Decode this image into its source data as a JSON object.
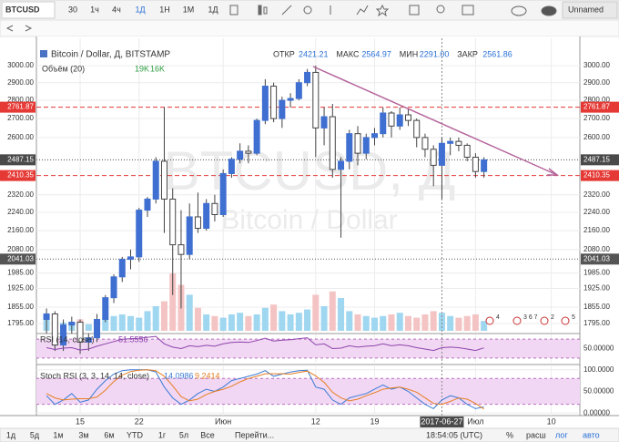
{
  "toolbar": {
    "symbol": "BTCUSD",
    "intervals": [
      "30",
      "1ч",
      "4ч",
      "1Д",
      "1Н",
      "1М"
    ],
    "style": "1Д",
    "layout": "Unnamed"
  },
  "bottom_bar": {
    "ranges": [
      "1д",
      "5д",
      "1м",
      "3м",
      "6м",
      "YTD",
      "1г",
      "5л",
      "Все"
    ],
    "goto": "Перейти...",
    "clock": "18:54:05 (UTC)",
    "options": [
      "%",
      "расш",
      "лог",
      "авто"
    ]
  },
  "chart_data": [
    {
      "type": "candlestick",
      "title": "Bitcoin / Dollar, Д, BITSTAMP",
      "watermark": [
        "BTCUSD, Д",
        "Bitcoin / Dollar"
      ],
      "ohlc_header": [
        {
          "name": "ОТКР",
          "value": "2421.21"
        },
        {
          "name": "МАКС",
          "value": "2564.97"
        },
        {
          "name": "МИН",
          "value": "2291.00"
        },
        {
          "name": "ЗАКР",
          "value": "2561.86"
        }
      ],
      "log_scale": true,
      "grid": true,
      "up_color": "#3f6fd1",
      "down_color": "#ffffff",
      "xlim": [
        -5.2,
        59.4
      ],
      "xticks": [
        {
          "value": 0,
          "label": "15"
        },
        {
          "value": 7,
          "label": "22"
        },
        {
          "value": 17,
          "label": "Июн"
        },
        {
          "value": 28,
          "label": "12"
        },
        {
          "value": 35,
          "label": "19"
        },
        {
          "value": 47,
          "label": "Июл"
        },
        {
          "value": 56,
          "label": "10"
        }
      ],
      "cursor_x": {
        "value": 43,
        "label": "2017-06-27"
      },
      "ylim": [
        1763,
        3168
      ],
      "yticks": [
        {
          "value": 3000,
          "label": "3000.00"
        },
        {
          "value": 2900,
          "label": "2900.00"
        },
        {
          "value": 2800,
          "label": "2800.00"
        },
        {
          "value": 2700,
          "label": "2700.00"
        },
        {
          "value": 2600,
          "label": "2600.00"
        },
        {
          "value": 2320,
          "label": "2320.00"
        },
        {
          "value": 2240,
          "label": "2240.00"
        },
        {
          "value": 2160,
          "label": "2160.00"
        },
        {
          "value": 2080,
          "label": "2080.00"
        },
        {
          "value": 1985,
          "label": "1985.00"
        },
        {
          "value": 1925,
          "label": "1925.00"
        },
        {
          "value": 1855,
          "label": "1855.00"
        },
        {
          "value": 1795,
          "label": "1795.00"
        }
      ],
      "levels": [
        {
          "value": 2761.87,
          "label": "2761.87",
          "color": "#e53935",
          "style": "dashed"
        },
        {
          "value": 2487.15,
          "label": "2487.15",
          "color": "#4a4a4a",
          "style": "dotted"
        },
        {
          "value": 2410.35,
          "label": "2410.35",
          "color": "#e53935",
          "style": "dashed"
        },
        {
          "value": 2041.03,
          "label": "2041.03",
          "color": "#555555",
          "style": "dotted"
        }
      ],
      "x": [
        -4,
        -3,
        -2,
        -1,
        0,
        1,
        2,
        3,
        4,
        5,
        6,
        7,
        8,
        9,
        10,
        11,
        12,
        13,
        14,
        15,
        16,
        17,
        18,
        19,
        20,
        21,
        22,
        23,
        24,
        25,
        26,
        27,
        28,
        29,
        30,
        31,
        32,
        33,
        34,
        35,
        36,
        37,
        38,
        39,
        40,
        41,
        42,
        43,
        44,
        45,
        46,
        47,
        48
      ],
      "ohlc": [
        [
          1810,
          1850,
          1760,
          1830
        ],
        [
          1830,
          1840,
          1700,
          1720
        ],
        [
          1720,
          1810,
          1700,
          1790
        ],
        [
          1790,
          1820,
          1760,
          1800
        ],
        [
          1800,
          1810,
          1690,
          1730
        ],
        [
          1730,
          1760,
          1700,
          1745
        ],
        [
          1745,
          1830,
          1730,
          1810
        ],
        [
          1810,
          1900,
          1800,
          1890
        ],
        [
          1890,
          1980,
          1870,
          1970
        ],
        [
          1970,
          2050,
          1950,
          2040
        ],
        [
          2040,
          2080,
          2000,
          2050
        ],
        [
          2050,
          2260,
          2030,
          2250
        ],
        [
          2250,
          2310,
          2220,
          2300
        ],
        [
          2300,
          2500,
          2280,
          2480
        ],
        [
          2480,
          2762,
          2150,
          2300
        ],
        [
          2300,
          2350,
          1900,
          2100
        ],
        [
          2100,
          2250,
          1850,
          2060
        ],
        [
          2060,
          2280,
          2040,
          2220
        ],
        [
          2220,
          2330,
          2150,
          2170
        ],
        [
          2170,
          2300,
          2160,
          2280
        ],
        [
          2280,
          2320,
          2200,
          2230
        ],
        [
          2230,
          2440,
          2220,
          2420
        ],
        [
          2420,
          2500,
          2400,
          2490
        ],
        [
          2490,
          2570,
          2470,
          2530
        ],
        [
          2530,
          2560,
          2470,
          2520
        ],
        [
          2520,
          2700,
          2510,
          2690
        ],
        [
          2690,
          2920,
          2670,
          2880
        ],
        [
          2880,
          2900,
          2680,
          2700
        ],
        [
          2700,
          2820,
          2650,
          2800
        ],
        [
          2800,
          2840,
          2760,
          2810
        ],
        [
          2810,
          2920,
          2800,
          2900
        ],
        [
          2900,
          2980,
          2880,
          2960
        ],
        [
          2960,
          3000,
          2500,
          2650
        ],
        [
          2650,
          2760,
          2560,
          2710
        ],
        [
          2710,
          2780,
          2400,
          2440
        ],
        [
          2440,
          2500,
          2130,
          2480
        ],
        [
          2480,
          2640,
          2440,
          2620
        ],
        [
          2620,
          2660,
          2460,
          2520
        ],
        [
          2520,
          2620,
          2490,
          2600
        ],
        [
          2600,
          2650,
          2560,
          2620
        ],
        [
          2620,
          2760,
          2600,
          2730
        ],
        [
          2730,
          2740,
          2600,
          2660
        ],
        [
          2660,
          2760,
          2640,
          2720
        ],
        [
          2720,
          2750,
          2660,
          2690
        ],
        [
          2690,
          2700,
          2550,
          2600
        ],
        [
          2600,
          2620,
          2500,
          2540
        ],
        [
          2540,
          2560,
          2360,
          2460
        ],
        [
          2460,
          2600,
          2300,
          2570
        ],
        [
          2570,
          2600,
          2510,
          2580
        ],
        [
          2580,
          2600,
          2530,
          2560
        ],
        [
          2560,
          2570,
          2480,
          2500
        ],
        [
          2500,
          2520,
          2400,
          2430
        ],
        [
          2430,
          2500,
          2400,
          2487.15
        ]
      ],
      "volume": {
        "name": "Объём (20)",
        "legend_values": [
          "19K",
          "16K"
        ],
        "up_color": "#9fd6f0",
        "down_color": "#f4c4c4",
        "values": [
          8,
          6,
          5,
          5,
          7,
          4,
          6,
          8,
          9,
          10,
          9,
          8,
          12,
          15,
          18,
          35,
          28,
          22,
          14,
          10,
          9,
          8,
          10,
          11,
          9,
          10,
          14,
          16,
          12,
          10,
          11,
          13,
          22,
          15,
          24,
          20,
          12,
          10,
          9,
          8,
          9,
          10,
          11,
          9,
          8,
          10,
          12,
          11,
          9,
          8,
          9,
          10,
          6
        ]
      },
      "event_flags": [
        "4",
        "3 6 7",
        "2",
        "5"
      ]
    },
    {
      "type": "line",
      "title": "RSI (14, close)",
      "legend_value": "51.5556",
      "color": "#8e44ad",
      "band": [
        30,
        70
      ],
      "ylim": [
        20,
        80
      ],
      "yticks": [
        {
          "value": 50,
          "label": "50.00000"
        }
      ],
      "values": [
        52,
        48,
        51,
        52,
        47,
        49,
        55,
        60,
        65,
        70,
        71,
        72,
        74,
        76,
        60,
        53,
        50,
        56,
        54,
        57,
        55,
        60,
        63,
        64,
        63,
        67,
        72,
        66,
        68,
        69,
        71,
        73,
        58,
        60,
        50,
        51,
        56,
        53,
        55,
        56,
        60,
        56,
        58,
        56,
        52,
        49,
        46,
        52,
        53,
        52,
        49,
        46,
        51.5556
      ]
    },
    {
      "type": "line",
      "title": "Stoch RSI (3, 3, 14, 14, close)",
      "band": [
        20,
        80
      ],
      "ylim": [
        -6,
        108
      ],
      "yticks": [
        {
          "value": 100,
          "label": "100.0000"
        },
        {
          "value": 50,
          "label": "50.00000"
        },
        {
          "value": 0,
          "label": "0.00000"
        }
      ],
      "series": [
        {
          "color": "#3a7bd5",
          "legend_value": "14.0986",
          "values": [
            40,
            20,
            30,
            45,
            25,
            30,
            55,
            75,
            90,
            98,
            100,
            100,
            100,
            95,
            60,
            35,
            20,
            30,
            45,
            55,
            50,
            60,
            75,
            80,
            85,
            90,
            98,
            85,
            90,
            95,
            98,
            99,
            60,
            55,
            30,
            20,
            35,
            40,
            45,
            55,
            65,
            55,
            60,
            50,
            35,
            20,
            10,
            30,
            40,
            35,
            20,
            10,
            14.0986
          ]
        },
        {
          "color": "#e67e22",
          "legend_value": "9.2414",
          "values": [
            45,
            35,
            30,
            32,
            33,
            33,
            37,
            53,
            73,
            88,
            96,
            99,
            100,
            98,
            85,
            63,
            38,
            28,
            32,
            43,
            50,
            55,
            62,
            72,
            80,
            85,
            91,
            91,
            91,
            90,
            94,
            97,
            86,
            71,
            48,
            35,
            28,
            32,
            40,
            47,
            55,
            58,
            60,
            55,
            48,
            35,
            22,
            20,
            27,
            35,
            32,
            22,
            9.2414
          ]
        }
      ]
    }
  ]
}
